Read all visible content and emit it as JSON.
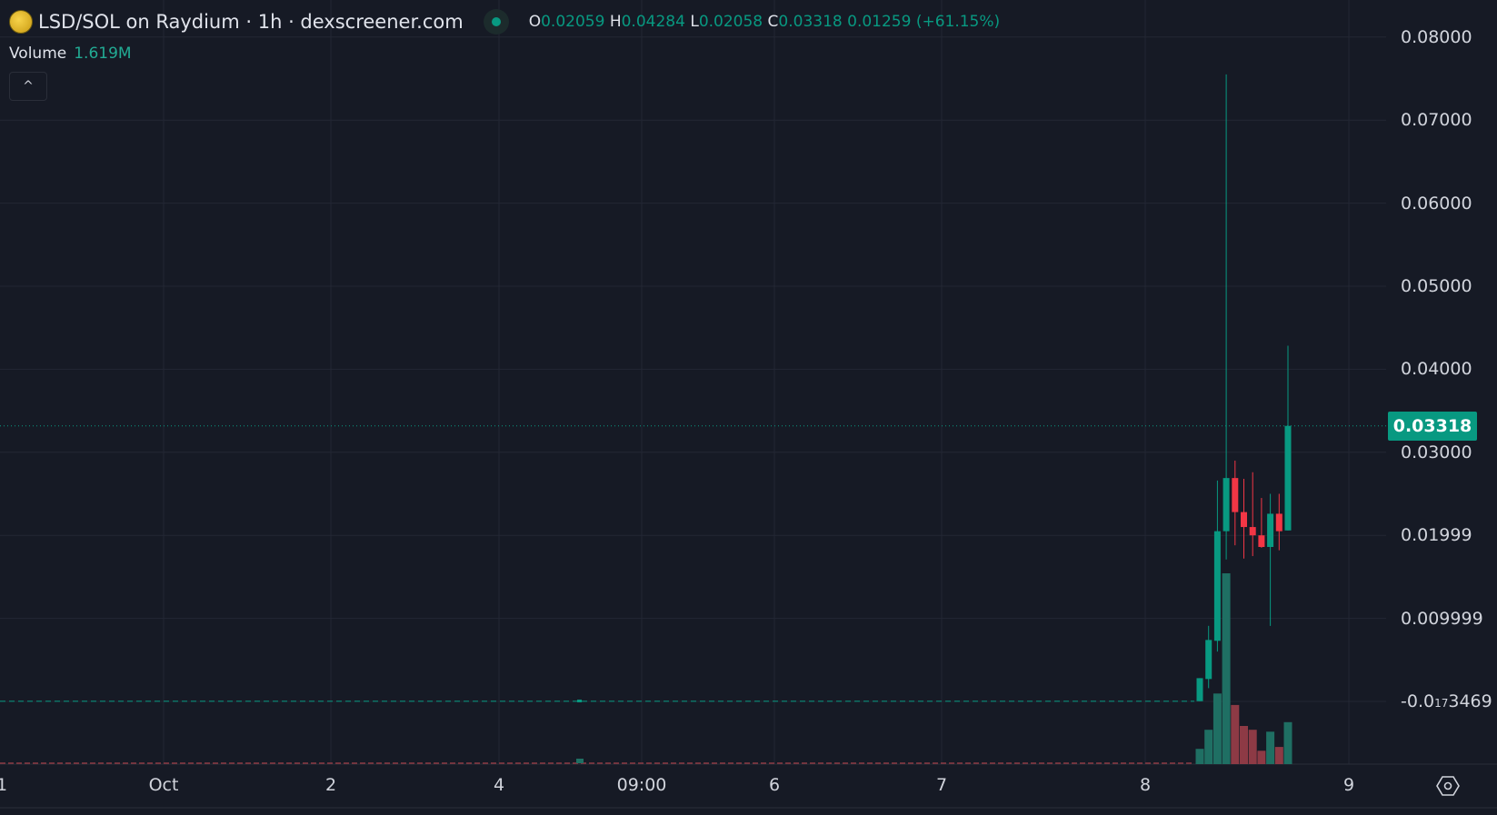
{
  "header": {
    "title": "LSD/SOL on Raydium · 1h · dexscreener.com",
    "ohlc": {
      "o_label": "O",
      "o": "0.02059",
      "h_label": "H",
      "h": "0.04284",
      "l_label": "L",
      "l": "0.02058",
      "c_label": "C",
      "c": "0.03318",
      "change": "0.01259 (+61.15%)"
    },
    "live_icon": "green-dot-icon"
  },
  "volume": {
    "label": "Volume",
    "value": "1.619M"
  },
  "collapse_icon": "chevron-up-icon",
  "collapse_glyph": "^",
  "settings_icon": "hexagon-settings-icon",
  "colors": {
    "background": "#161a25",
    "up": "#089981",
    "down": "#f23645",
    "volume_up": "#1f6f63",
    "volume_down": "#8d3a45",
    "grid": "#232734"
  },
  "chart_data": {
    "type": "candlestick",
    "title": "LSD/SOL on Raydium · 1h",
    "y_ticks": [
      "0.08000",
      "0.07000",
      "0.06000",
      "0.05000",
      "0.04000",
      "0.03000",
      "0.01999",
      "0.009999"
    ],
    "y_tick_values": [
      0.08,
      0.07,
      0.06,
      0.05,
      0.04,
      0.03,
      0.02,
      0.01
    ],
    "y_low_label": {
      "pre": "-0.0",
      "sub": "17",
      "post": "3469"
    },
    "ylim": [
      0,
      0.08
    ],
    "x_ticks": [
      "1",
      "Oct",
      "2",
      "4",
      "09:00",
      "6",
      "7",
      "8",
      "9"
    ],
    "current_price": "0.03318",
    "flat_price_before_oct8": 3e-05,
    "candles": [
      {
        "o": 3e-05,
        "h": 0.0028,
        "l": 3e-05,
        "c": 0.0028,
        "vol": 0.08
      },
      {
        "o": 0.0027,
        "h": 0.0091,
        "l": 0.0016,
        "c": 0.0074,
        "vol": 0.18
      },
      {
        "o": 0.0073,
        "h": 0.0266,
        "l": 0.006,
        "c": 0.0205,
        "vol": 0.37
      },
      {
        "o": 0.0205,
        "h": 0.0755,
        "l": 0.0171,
        "c": 0.0269,
        "vol": 1.0
      },
      {
        "o": 0.0269,
        "h": 0.029,
        "l": 0.0188,
        "c": 0.0228,
        "vol": 0.31
      },
      {
        "o": 0.0228,
        "h": 0.0268,
        "l": 0.0172,
        "c": 0.021,
        "vol": 0.2
      },
      {
        "o": 0.021,
        "h": 0.0276,
        "l": 0.0175,
        "c": 0.02,
        "vol": 0.18
      },
      {
        "o": 0.02,
        "h": 0.0245,
        "l": 0.0185,
        "c": 0.0186,
        "vol": 0.07
      },
      {
        "o": 0.0186,
        "h": 0.025,
        "l": 0.0091,
        "c": 0.0226,
        "vol": 0.17
      },
      {
        "o": 0.0226,
        "h": 0.025,
        "l": 0.0182,
        "c": 0.0205,
        "vol": 0.09
      },
      {
        "o": 0.02059,
        "h": 0.04284,
        "l": 0.02058,
        "c": 0.03318,
        "vol": 0.22
      }
    ]
  }
}
